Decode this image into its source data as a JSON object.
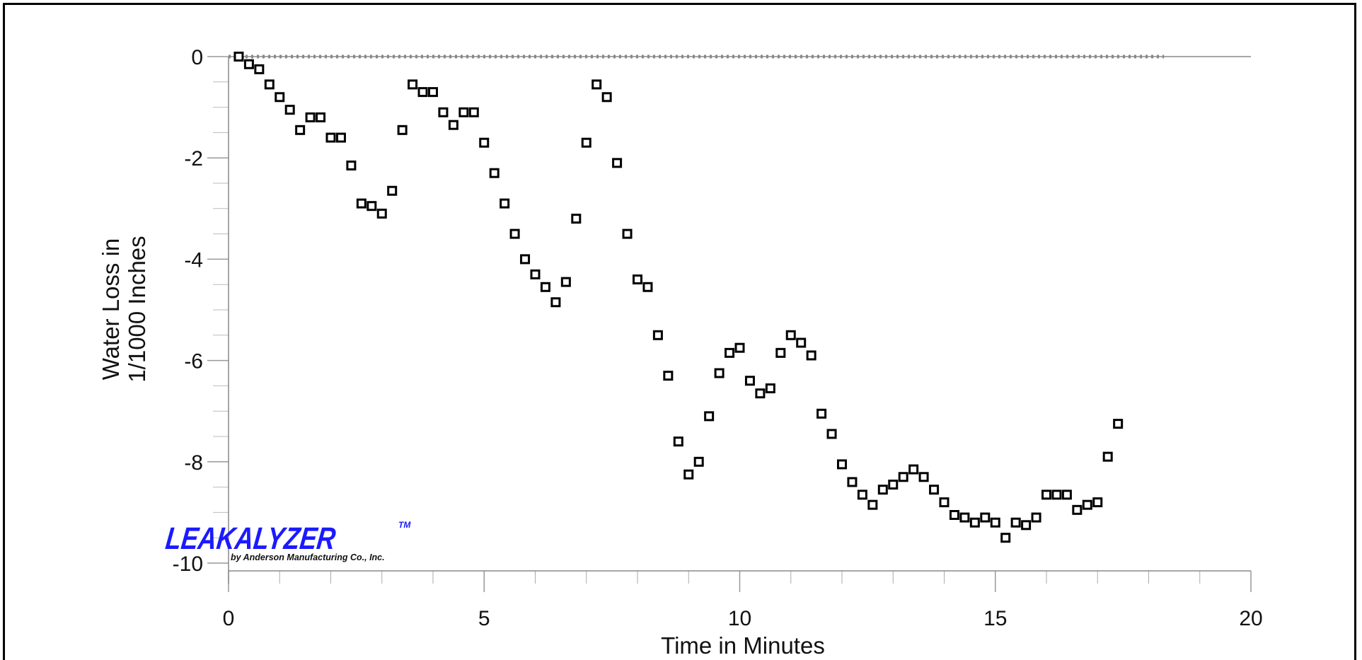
{
  "chart_data": {
    "type": "scatter",
    "title": "",
    "xlabel": "Time in Minutes",
    "ylabel_line1": "Water Loss in",
    "ylabel_line2": "1/1000 Inches",
    "xlim": [
      0,
      20
    ],
    "ylim": [
      -10,
      0
    ],
    "x_ticks": [
      0,
      5,
      10,
      15,
      20
    ],
    "y_ticks": [
      0,
      -2,
      -4,
      -6,
      -8,
      -10
    ],
    "x_tick_labels": [
      "0",
      "5",
      "10",
      "15",
      "20"
    ],
    "y_tick_labels": [
      "0",
      "-2",
      "-4",
      "-6",
      "-8",
      "-10"
    ],
    "x_minor_step": 1,
    "y_minor_step": 0.5,
    "grid": false,
    "marker": "open-square",
    "reference_line": {
      "y": 0,
      "x_end": 18.3,
      "style": "dotted"
    },
    "points": [
      [
        0.2,
        0.0
      ],
      [
        0.4,
        -0.15
      ],
      [
        0.6,
        -0.25
      ],
      [
        0.8,
        -0.55
      ],
      [
        1.0,
        -0.8
      ],
      [
        1.2,
        -1.05
      ],
      [
        1.4,
        -1.45
      ],
      [
        1.6,
        -1.2
      ],
      [
        1.8,
        -1.2
      ],
      [
        2.0,
        -1.6
      ],
      [
        2.2,
        -1.6
      ],
      [
        2.4,
        -2.15
      ],
      [
        2.6,
        -2.9
      ],
      [
        2.8,
        -2.95
      ],
      [
        3.0,
        -3.1
      ],
      [
        3.2,
        -2.65
      ],
      [
        3.4,
        -1.45
      ],
      [
        3.6,
        -0.55
      ],
      [
        3.8,
        -0.7
      ],
      [
        4.0,
        -0.7
      ],
      [
        4.2,
        -1.1
      ],
      [
        4.4,
        -1.35
      ],
      [
        4.6,
        -1.1
      ],
      [
        4.8,
        -1.1
      ],
      [
        5.0,
        -1.7
      ],
      [
        5.2,
        -2.3
      ],
      [
        5.4,
        -2.9
      ],
      [
        5.6,
        -3.5
      ],
      [
        5.8,
        -4.0
      ],
      [
        6.0,
        -4.3
      ],
      [
        6.2,
        -4.55
      ],
      [
        6.4,
        -4.85
      ],
      [
        6.6,
        -4.45
      ],
      [
        6.8,
        -3.2
      ],
      [
        7.0,
        -1.7
      ],
      [
        7.2,
        -0.55
      ],
      [
        7.4,
        -0.8
      ],
      [
        7.6,
        -2.1
      ],
      [
        7.8,
        -3.5
      ],
      [
        8.0,
        -4.4
      ],
      [
        8.2,
        -4.55
      ],
      [
        8.4,
        -5.5
      ],
      [
        8.6,
        -6.3
      ],
      [
        8.8,
        -7.6
      ],
      [
        9.0,
        -8.25
      ],
      [
        9.2,
        -8.0
      ],
      [
        9.4,
        -7.1
      ],
      [
        9.6,
        -6.25
      ],
      [
        9.8,
        -5.85
      ],
      [
        10.0,
        -5.75
      ],
      [
        10.2,
        -6.4
      ],
      [
        10.4,
        -6.65
      ],
      [
        10.6,
        -6.55
      ],
      [
        10.8,
        -5.85
      ],
      [
        11.0,
        -5.5
      ],
      [
        11.2,
        -5.65
      ],
      [
        11.4,
        -5.9
      ],
      [
        11.6,
        -7.05
      ],
      [
        11.8,
        -7.45
      ],
      [
        12.0,
        -8.05
      ],
      [
        12.2,
        -8.4
      ],
      [
        12.4,
        -8.65
      ],
      [
        12.6,
        -8.85
      ],
      [
        12.8,
        -8.55
      ],
      [
        13.0,
        -8.45
      ],
      [
        13.2,
        -8.3
      ],
      [
        13.4,
        -8.15
      ],
      [
        13.6,
        -8.3
      ],
      [
        13.8,
        -8.55
      ],
      [
        14.0,
        -8.8
      ],
      [
        14.2,
        -9.05
      ],
      [
        14.4,
        -9.1
      ],
      [
        14.6,
        -9.2
      ],
      [
        14.8,
        -9.1
      ],
      [
        15.0,
        -9.2
      ],
      [
        15.2,
        -9.5
      ],
      [
        15.4,
        -9.2
      ],
      [
        15.6,
        -9.25
      ],
      [
        15.8,
        -9.1
      ],
      [
        16.0,
        -8.65
      ],
      [
        16.2,
        -8.65
      ],
      [
        16.4,
        -8.65
      ],
      [
        16.6,
        -8.95
      ],
      [
        16.8,
        -8.85
      ],
      [
        17.0,
        -8.8
      ],
      [
        17.2,
        -7.9
      ],
      [
        17.4,
        -7.25
      ]
    ]
  },
  "logo": {
    "name": "LEAKALYZER",
    "trademark": "TM",
    "tagline": "by Anderson Manufacturing Co., Inc.",
    "color": "#1a1aff"
  },
  "colors": {
    "marker": "#000000",
    "axis": "#888888",
    "reference_line": "#888888"
  }
}
